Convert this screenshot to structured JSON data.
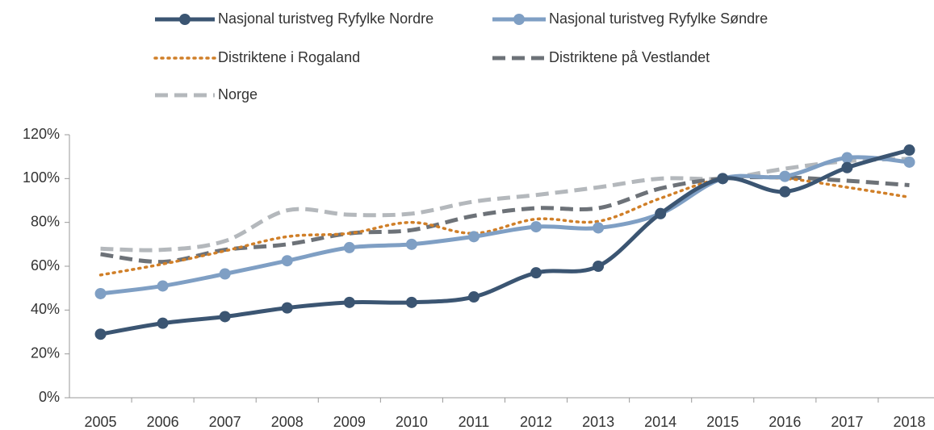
{
  "chart_data": {
    "type": "line",
    "categories": [
      "2005",
      "2006",
      "2007",
      "2008",
      "2009",
      "2010",
      "2011",
      "2012",
      "2013",
      "2014",
      "2015",
      "2016",
      "2017",
      "2018"
    ],
    "series": [
      {
        "name": "Nasjonal turistveg Ryfylke Nordre",
        "color": "#3b5572",
        "style": "solid",
        "marker": true,
        "values": [
          29,
          34,
          37,
          41,
          43.5,
          43.5,
          46,
          57,
          60,
          84,
          100,
          94,
          105,
          113
        ]
      },
      {
        "name": "Nasjonal turistveg Ryfylke Søndre",
        "color": "#7f9fc4",
        "style": "solid",
        "marker": true,
        "values": [
          47.5,
          51,
          56.5,
          62.5,
          68.5,
          70,
          73.5,
          78,
          77.5,
          84,
          100,
          101,
          109.5,
          107.5
        ]
      },
      {
        "name": "Distriktene i Rogaland",
        "color": "#d07f28",
        "style": "dotted",
        "marker": false,
        "values": [
          56,
          61,
          67,
          73.5,
          75,
          80,
          75,
          81.5,
          80.5,
          91,
          100,
          100,
          96,
          91.5
        ]
      },
      {
        "name": "Distriktene på Vestlandet",
        "color": "#6d7278",
        "style": "dashed",
        "marker": false,
        "values": [
          65.5,
          62,
          67.5,
          70,
          75,
          76.5,
          83,
          86.5,
          86.5,
          95.5,
          100,
          100.5,
          99,
          97
        ]
      },
      {
        "name": "Norge",
        "color": "#b4b8bc",
        "style": "dashed",
        "marker": false,
        "values": [
          68,
          67.5,
          71.5,
          85.5,
          83.5,
          84,
          89.5,
          92.5,
          96,
          100,
          100,
          104.5,
          108,
          109
        ]
      }
    ],
    "ylim": [
      0,
      120
    ],
    "yticks": [
      {
        "value": 0,
        "label": "0%"
      },
      {
        "value": 20,
        "label": "20%"
      },
      {
        "value": 40,
        "label": "40%"
      },
      {
        "value": 60,
        "label": "60%"
      },
      {
        "value": 80,
        "label": "80%"
      },
      {
        "value": 100,
        "label": "100%"
      },
      {
        "value": 120,
        "label": "120%"
      }
    ],
    "grid": false,
    "legend": "top"
  }
}
